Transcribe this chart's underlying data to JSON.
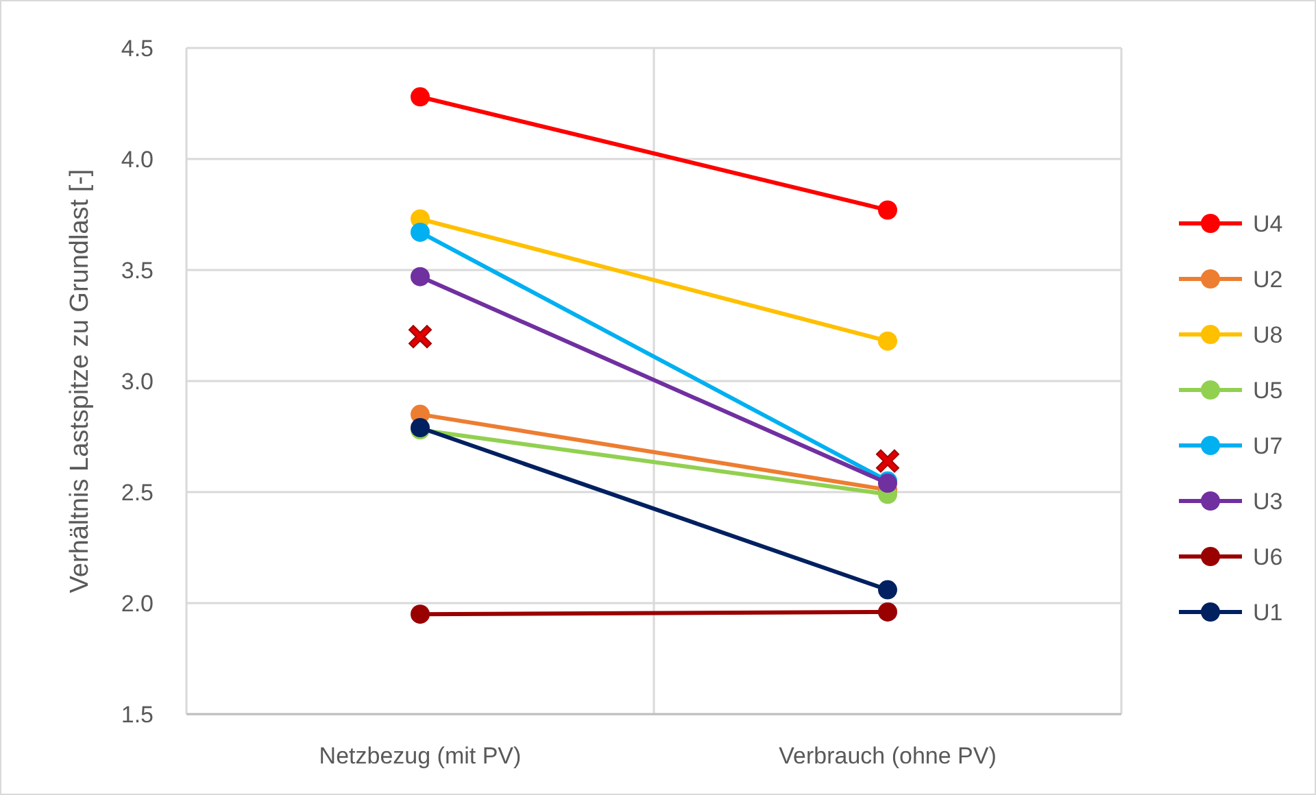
{
  "chart_data": {
    "type": "line",
    "ylabel": "Verhältnis Lastspitze zu Grundlast [-]",
    "categories": [
      "Netzbezug (mit PV)",
      "Verbrauch (ohne PV)"
    ],
    "ylim": [
      1.5,
      4.5
    ],
    "yticks": [
      {
        "value": 1.5,
        "label": "1.5"
      },
      {
        "value": 2,
        "label": "2.0"
      },
      {
        "value": 2.5,
        "label": "2.5"
      },
      {
        "value": 3,
        "label": "3.0"
      },
      {
        "value": 3.5,
        "label": "3.5"
      },
      {
        "value": 4,
        "label": "4.0"
      },
      {
        "value": 4.5,
        "label": "4.5"
      }
    ],
    "grid": true,
    "legend": "right",
    "marker": "circle",
    "series": [
      {
        "name": "U4",
        "color": "#ff0000",
        "values": [
          4.28,
          3.77
        ]
      },
      {
        "name": "U2",
        "color": "#ed7d31",
        "values": [
          2.85,
          2.51
        ]
      },
      {
        "name": "U8",
        "color": "#ffc000",
        "values": [
          3.73,
          3.18
        ]
      },
      {
        "name": "U5",
        "color": "#92d050",
        "values": [
          2.78,
          2.49
        ]
      },
      {
        "name": "U7",
        "color": "#00b0f0",
        "values": [
          3.67,
          2.55
        ]
      },
      {
        "name": "U3",
        "color": "#7030a0",
        "values": [
          3.47,
          2.54
        ]
      },
      {
        "name": "U6",
        "color": "#990000",
        "values": [
          1.95,
          1.96
        ]
      },
      {
        "name": "U1",
        "color": "#002060",
        "values": [
          2.79,
          2.06
        ]
      },
      {
        "type": "scatter",
        "marker": "cross",
        "color": "#e00000",
        "values": [
          3.2,
          2.64
        ]
      }
    ]
  }
}
